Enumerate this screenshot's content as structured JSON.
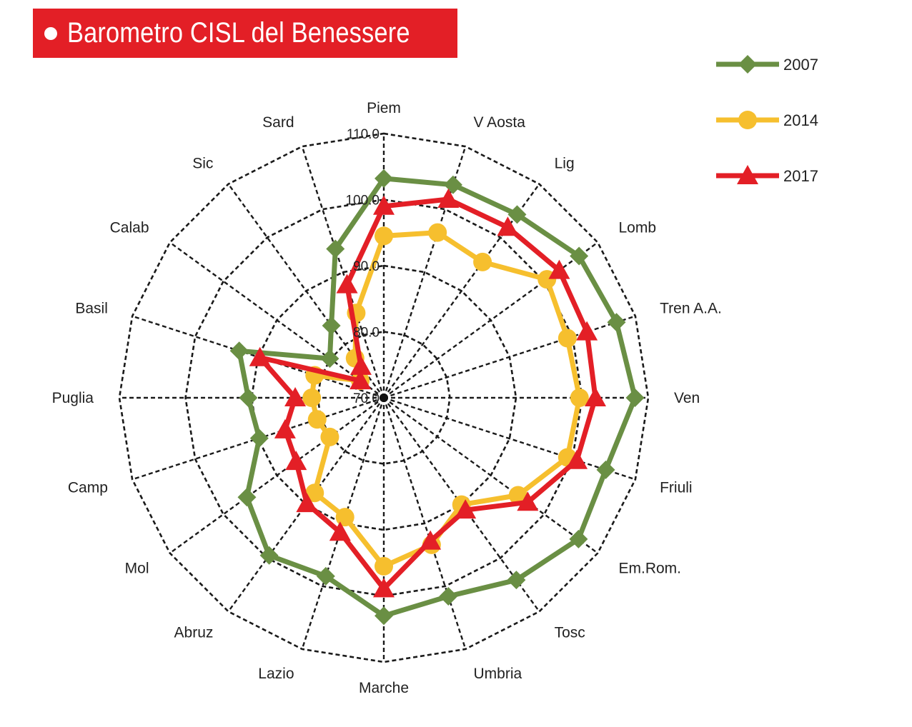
{
  "title": "Barometro CISL del Benessere",
  "colors": {
    "title_bg": "#e31f26",
    "series_2007": "#6a8f44",
    "series_2014": "#f6bf2e",
    "series_2017": "#e31f26",
    "grid": "#1a1a1a"
  },
  "chart_data": {
    "type": "radar",
    "title": "Barometro CISL del Benessere",
    "categories": [
      "Piem",
      "V Aosta",
      "Lig",
      "Lomb",
      "Tren A.A.",
      "Ven",
      "Friuli",
      "Em.Rom.",
      "Tosc",
      "Umbria",
      "Marche",
      "Lazio",
      "Abruz",
      "Mol",
      "Camp",
      "Puglia",
      "Basil",
      "Calab",
      "Sic",
      "Sard"
    ],
    "radial_ticks": [
      "70.0",
      "80.0",
      "90.0",
      "100.0",
      "110.0"
    ],
    "radial_range": [
      70,
      110
    ],
    "grid": true,
    "legend_position": "top-right",
    "series": [
      {
        "name": "2007",
        "marker": "diamond",
        "color": "#6a8f44",
        "values": [
          103.2,
          103.9,
          104.3,
          106.5,
          107.0,
          108.0,
          105.3,
          106.4,
          104.1,
          101.6,
          103.0,
          98.4,
          99.5,
          95.6,
          89.8,
          90.5,
          93.0,
          80.1,
          83.5,
          93.7
        ]
      },
      {
        "name": "2014",
        "marker": "circle",
        "color": "#f6bf2e",
        "values": [
          94.5,
          96.3,
          95.4,
          100.5,
          99.2,
          99.6,
          99.2,
          95.1,
          90.0,
          93.4,
          95.5,
          89.0,
          87.8,
          80.1,
          80.6,
          80.9,
          81.0,
          74.4,
          77.4,
          83.5
        ]
      },
      {
        "name": "2017",
        "marker": "triangle",
        "color": "#e31f26",
        "values": [
          99.0,
          101.6,
          101.9,
          102.8,
          102.3,
          102.0,
          100.7,
          96.9,
          91.0,
          92.8,
          98.9,
          91.4,
          89.8,
          86.4,
          85.7,
          83.4,
          89.7,
          74.4,
          75.9,
          88.0
        ]
      }
    ]
  }
}
